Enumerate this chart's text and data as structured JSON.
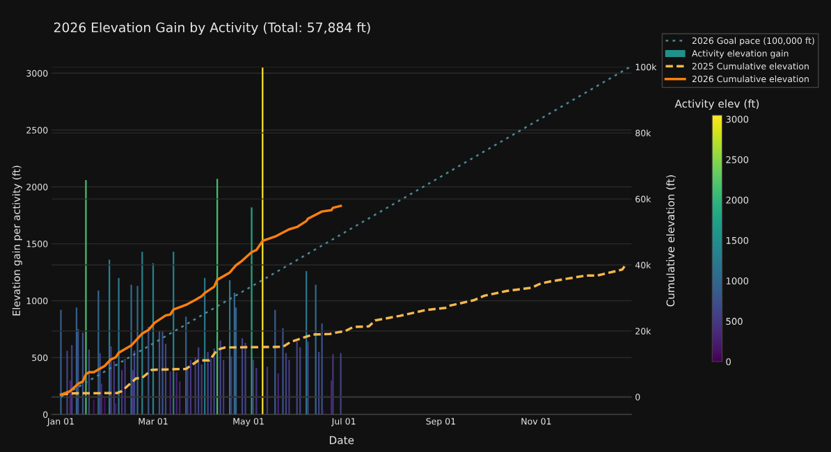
{
  "chart_data": {
    "type": "bar",
    "title": "2026 Elevation Gain by Activity (Total: 57,884 ft)",
    "xlabel": "Date",
    "ylabel": "Elevation gain per activity (ft)",
    "y2label": "Cumulative elevation (ft)",
    "clabel": "Activity elev (ft)",
    "xlim": [
      "2025-12-26",
      "2027-01-01"
    ],
    "xticks": [
      {
        "value": "2026-01-01",
        "label": "Jan 01"
      },
      {
        "value": "2026-03-01",
        "label": "Mar 01"
      },
      {
        "value": "2026-05-01",
        "label": "May 01"
      },
      {
        "value": "2026-07-01",
        "label": "Jul 01"
      },
      {
        "value": "2026-09-01",
        "label": "Sep 01"
      },
      {
        "value": "2026-11-01",
        "label": "Nov 01"
      }
    ],
    "ylim": [
      0,
      3055
    ],
    "yticks": [
      0,
      500,
      1000,
      1500,
      2000,
      2500,
      3000
    ],
    "y2lim": [
      -5300,
      100000
    ],
    "y2ticks": [
      0,
      {
        "value": 20000,
        "label": "20k"
      },
      {
        "value": 40000,
        "label": "40k"
      },
      {
        "value": 60000,
        "label": "60k"
      },
      {
        "value": 80000,
        "label": "80k"
      },
      {
        "value": 100000,
        "label": "100k"
      }
    ],
    "clim": [
      0,
      3048
    ],
    "cticks": [
      0,
      500,
      1000,
      1500,
      2000,
      2500,
      3000
    ],
    "grid": "y",
    "legend": "top right",
    "ref_lines": [
      {
        "axis": "y2",
        "value": 0,
        "color": "#444444"
      }
    ],
    "series": [
      {
        "name": "2026 Goal pace (100,000 ft)",
        "type": "line",
        "axis": "y2",
        "color": "#4a8a9a",
        "line_style": "dotted",
        "x": [
          "2026-01-01",
          "2026-12-31"
        ],
        "values": [
          0,
          100000
        ]
      },
      {
        "name": "Activity elevation gain",
        "color": "#21918c",
        "colors": [
          "#355f8d",
          "#414487",
          "#482475",
          "#414487",
          "#355f8d",
          "#3b528b",
          "#3b528b",
          "#44bf70",
          "#414487",
          "#471365",
          "#31688e",
          "#414487",
          "#482475",
          "#471365",
          "#26828e",
          "#414487",
          "#453781",
          "#471365",
          "#2a788e",
          "#453781",
          "#453781",
          "#31688e",
          "#453781",
          "#414487",
          "#31688e",
          "#26828e",
          "#3b528b",
          "#26828e",
          "#3b528b",
          "#3b528b",
          "#414487",
          "#482475",
          "#26828e",
          "#482475",
          "#482475",
          "#355f8d",
          "#453781",
          "#453781",
          "#453781",
          "#414487",
          "#453781",
          "#2a788e",
          "#414487",
          "#453781",
          "#414487",
          "#44bf70",
          "#414487",
          "#453781",
          "#2a788e",
          "#453781",
          "#31688e",
          "#355f8d",
          "#414487",
          "#414487",
          "#22a884",
          "#453781",
          "#453781",
          "#fde725",
          "#453781",
          "#355f8d",
          "#482475",
          "#3b528b",
          "#414487",
          "#453781",
          "#414487",
          "#414487",
          "#2a788e",
          "#414487",
          "#31688e",
          "#414487",
          "#3b528b",
          "#440154",
          "#482475",
          "#453781",
          "#414487"
        ],
        "x": [
          "2026-01-01",
          "2026-01-05",
          "2026-01-07",
          "2026-01-08",
          "2026-01-11",
          "2026-01-12",
          "2026-01-15",
          "2026-01-17",
          "2026-01-19",
          "2026-01-22",
          "2026-01-25",
          "2026-01-26",
          "2026-01-27",
          "2026-01-29",
          "2026-02-01",
          "2026-02-02",
          "2026-02-04",
          "2026-02-05",
          "2026-02-07",
          "2026-02-09",
          "2026-02-11",
          "2026-02-15",
          "2026-02-16",
          "2026-02-17",
          "2026-02-19",
          "2026-02-22",
          "2026-02-26",
          "2026-03-01",
          "2026-03-05",
          "2026-03-07",
          "2026-03-09",
          "2026-03-12",
          "2026-03-14",
          "2026-03-16",
          "2026-03-18",
          "2026-03-22",
          "2026-03-23",
          "2026-03-25",
          "2026-03-28",
          "2026-03-30",
          "2026-04-01",
          "2026-04-03",
          "2026-04-05",
          "2026-04-07",
          "2026-04-09",
          "2026-04-11",
          "2026-04-13",
          "2026-04-15",
          "2026-04-19",
          "2026-04-20",
          "2026-04-22",
          "2026-04-23",
          "2026-04-27",
          "2026-04-29",
          "2026-05-03",
          "2026-05-04",
          "2026-05-06",
          "2026-05-10",
          "2026-05-13",
          "2026-05-18",
          "2026-05-20",
          "2026-05-23",
          "2026-05-25",
          "2026-05-27",
          "2026-06-01",
          "2026-06-03",
          "2026-06-07",
          "2026-06-08",
          "2026-06-13",
          "2026-06-15",
          "2026-06-17",
          "2026-06-18",
          "2026-06-23",
          "2026-06-24",
          "2026-06-29"
        ],
        "values": [
          920,
          560,
          300,
          610,
          940,
          750,
          720,
          2060,
          570,
          130,
          1090,
          540,
          270,
          150,
          1360,
          600,
          470,
          100,
          1200,
          390,
          490,
          1140,
          390,
          560,
          1130,
          1430,
          770,
          1330,
          730,
          730,
          620,
          380,
          1430,
          370,
          290,
          860,
          400,
          480,
          500,
          590,
          440,
          1200,
          550,
          490,
          580,
          2070,
          650,
          480,
          1180,
          510,
          1070,
          940,
          670,
          630,
          1820,
          480,
          410,
          3048,
          420,
          920,
          360,
          760,
          540,
          480,
          640,
          590,
          1260,
          640,
          1140,
          550,
          800,
          40,
          300,
          530,
          540
        ]
      },
      {
        "name": "2025 Cumulative elevation",
        "type": "line",
        "axis": "y2",
        "color": "#f5b94d",
        "line_style": "dashed",
        "x": [
          "2026-01-01",
          "2026-01-07",
          "2026-02-06",
          "2026-02-09",
          "2026-02-18",
          "2026-02-22",
          "2026-02-28",
          "2026-03-05",
          "2026-03-22",
          "2026-03-30",
          "2026-04-06",
          "2026-04-11",
          "2026-04-16",
          "2026-05-23",
          "2026-05-28",
          "2026-06-09",
          "2026-06-10",
          "2026-06-22",
          "2026-06-27",
          "2026-07-02",
          "2026-07-07",
          "2026-07-17",
          "2026-07-21",
          "2026-08-06",
          "2026-08-22",
          "2026-09-04",
          "2026-09-07",
          "2026-09-22",
          "2026-09-29",
          "2026-10-13",
          "2026-10-29",
          "2026-11-04",
          "2026-11-10",
          "2026-12-03",
          "2026-12-10",
          "2026-12-26",
          "2026-12-28"
        ],
        "values": [
          700,
          1100,
          1200,
          1800,
          5600,
          5800,
          8200,
          8300,
          8500,
          11100,
          11100,
          14300,
          15000,
          15200,
          16700,
          18600,
          18900,
          19100,
          19600,
          20000,
          21200,
          21400,
          23200,
          24600,
          26300,
          27000,
          27700,
          29300,
          30700,
          32100,
          33100,
          34400,
          35000,
          36800,
          36800,
          38600,
          39900
        ]
      },
      {
        "name": "2026 Cumulative elevation",
        "type": "line",
        "axis": "y2",
        "color": "#ff7f0e",
        "line_style": "solid",
        "x": [
          "2026-01-01",
          "2026-01-07",
          "2026-01-12",
          "2026-01-15",
          "2026-01-17",
          "2026-01-19",
          "2026-01-22",
          "2026-01-29",
          "2026-02-02",
          "2026-02-05",
          "2026-02-07",
          "2026-02-15",
          "2026-02-22",
          "2026-02-26",
          "2026-03-02",
          "2026-03-09",
          "2026-03-12",
          "2026-03-14",
          "2026-03-22",
          "2026-03-28",
          "2026-04-01",
          "2026-04-03",
          "2026-04-09",
          "2026-04-11",
          "2026-04-19",
          "2026-04-23",
          "2026-04-27",
          "2026-05-03",
          "2026-05-06",
          "2026-05-10",
          "2026-05-18",
          "2026-05-27",
          "2026-06-01",
          "2026-06-07",
          "2026-06-08",
          "2026-06-17",
          "2026-06-23",
          "2026-06-24",
          "2026-06-29"
        ],
        "values": [
          700,
          1800,
          4000,
          4700,
          6900,
          7500,
          7500,
          9400,
          11400,
          12000,
          13400,
          15600,
          19200,
          20300,
          22500,
          24700,
          25000,
          26500,
          27900,
          29400,
          30500,
          31500,
          33400,
          35500,
          37700,
          39900,
          41300,
          43900,
          44500,
          47300,
          48600,
          50800,
          51500,
          53300,
          54000,
          56200,
          56600,
          57300,
          57900
        ]
      }
    ]
  }
}
